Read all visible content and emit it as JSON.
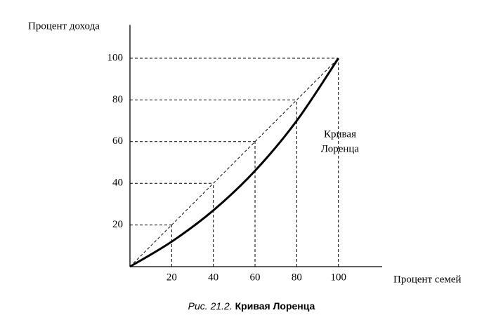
{
  "chart_data": {
    "type": "line",
    "figure_label": "Рис. 21.2.",
    "title": "Кривая Лоренца",
    "x_label": "Процент семей",
    "y_label": "Процент дохода",
    "annotation": [
      "Кривая",
      "Лоренца"
    ],
    "x": [
      0,
      20,
      40,
      60,
      80,
      100
    ],
    "values": [
      0,
      12,
      27,
      46,
      70,
      100
    ],
    "color": "#000000",
    "equality_line": true,
    "xlim": [
      0,
      121
    ],
    "ylim": [
      0,
      116
    ],
    "xticks": [
      20,
      40,
      60,
      80,
      100
    ],
    "yticks": [
      20,
      40,
      60,
      80,
      100
    ]
  }
}
